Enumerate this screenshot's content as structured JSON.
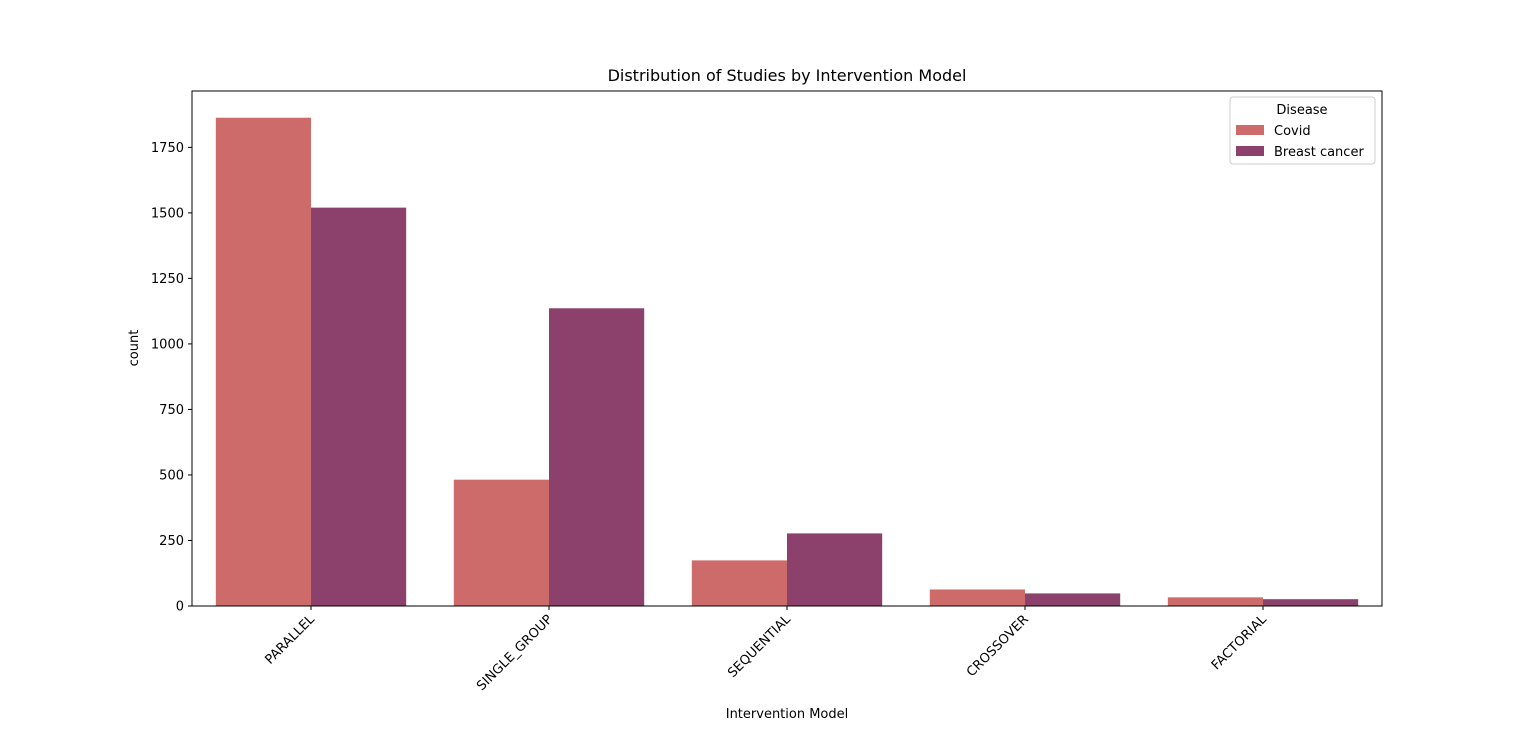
{
  "chart_data": {
    "type": "bar",
    "title": "Distribution of Studies by Intervention Model",
    "xlabel": "Intervention Model",
    "ylabel": "count",
    "categories": [
      "PARALLEL",
      "SINGLE_GROUP",
      "SEQUENTIAL",
      "CROSSOVER",
      "FACTORIAL"
    ],
    "series": [
      {
        "name": "Covid",
        "color": "#cd6a6a",
        "values": [
          1863,
          482,
          174,
          63,
          33
        ]
      },
      {
        "name": "Breast cancer",
        "color": "#8b416b",
        "values": [
          1520,
          1136,
          277,
          48,
          26
        ]
      }
    ],
    "ylim": [
      0,
      1965
    ],
    "yticks": [
      0,
      250,
      500,
      750,
      1000,
      1250,
      1500,
      1750
    ],
    "grid": false,
    "legend": {
      "title": "Disease",
      "placement": "top-right"
    }
  }
}
